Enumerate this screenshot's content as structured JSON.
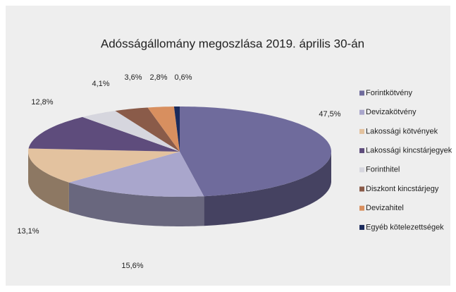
{
  "chart_data": {
    "type": "pie3d",
    "title": "Adósságállomány megoszlása 2019. április 30-án",
    "categories": [
      "Forintkötvény",
      "Devizakötvény",
      "Lakossági kötvények",
      "Lakossági kincstárjegyek",
      "Forinthitel",
      "Diszkont kincstárjegy",
      "Devizahitel",
      "Egyéb kötelezettségek"
    ],
    "values": [
      47.5,
      15.6,
      13.1,
      12.8,
      4.1,
      3.6,
      2.8,
      0.6
    ],
    "value_labels": [
      "47,5%",
      "15,6%",
      "13,1%",
      "12,8%",
      "4,1%",
      "3,6%",
      "2,8%",
      "0,6%"
    ],
    "colors": [
      "#6f6b9c",
      "#a9a6cc",
      "#e3c29f",
      "#5e4c7c",
      "#d6d6de",
      "#8a5b49",
      "#d88f5f",
      "#1b2b5c"
    ],
    "legend": "right"
  }
}
